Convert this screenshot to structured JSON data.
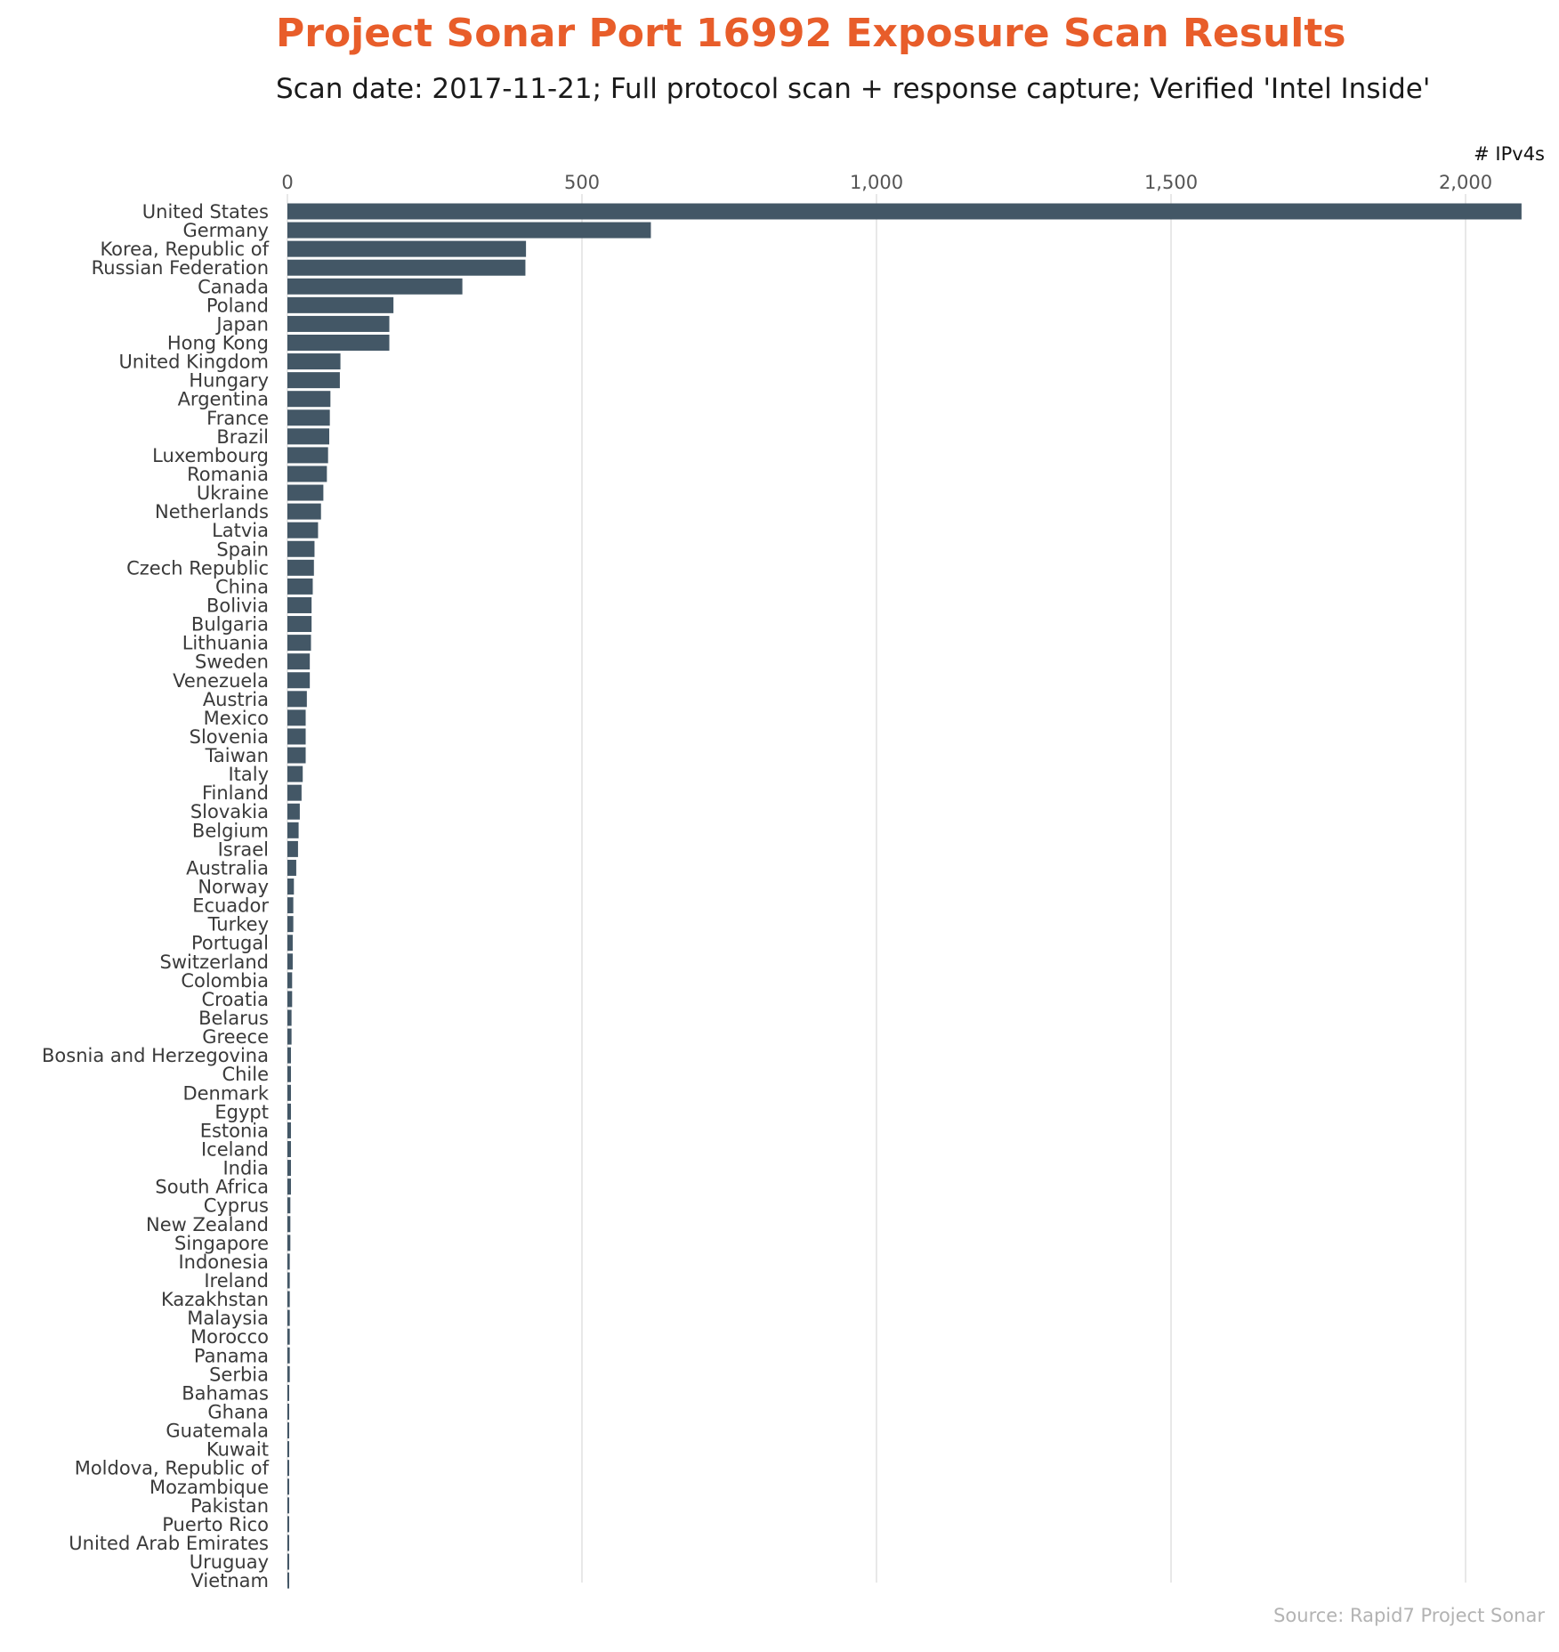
{
  "header": {
    "title": "Project Sonar Port 16992 Exposure Scan Results",
    "subtitle": "Scan date: 2017-11-21; Full protocol scan + response capture; Verified 'Intel Inside'"
  },
  "footer": {
    "source": "Source: Rapid7 Project Sonar"
  },
  "colors": {
    "title": "#E85D2A",
    "bar": "#435766",
    "grid": "#d9d9d9",
    "label": "#3a3a3a"
  },
  "chart_data": {
    "type": "bar",
    "orientation": "horizontal",
    "xlabel": "# IPv4s",
    "ylabel": "",
    "xlim": [
      0,
      2100
    ],
    "xticks": [
      0,
      500,
      1000,
      1500,
      2000
    ],
    "xtick_labels": [
      "0",
      "500",
      "1,000",
      "1,500",
      "2,000"
    ],
    "axis_position": "top",
    "grid": "vertical",
    "categories": [
      "United States",
      "Germany",
      "Korea, Republic of",
      "Russian Federation",
      "Canada",
      "Poland",
      "Japan",
      "Hong Kong",
      "United Kingdom",
      "Hungary",
      "Argentina",
      "France",
      "Brazil",
      "Luxembourg",
      "Romania",
      "Ukraine",
      "Netherlands",
      "Latvia",
      "Spain",
      "Czech Republic",
      "China",
      "Bolivia",
      "Bulgaria",
      "Lithuania",
      "Sweden",
      "Venezuela",
      "Austria",
      "Mexico",
      "Slovenia",
      "Taiwan",
      "Italy",
      "Finland",
      "Slovakia",
      "Belgium",
      "Israel",
      "Australia",
      "Norway",
      "Ecuador",
      "Turkey",
      "Portugal",
      "Switzerland",
      "Colombia",
      "Croatia",
      "Belarus",
      "Greece",
      "Bosnia and Herzegovina",
      "Chile",
      "Denmark",
      "Egypt",
      "Estonia",
      "Iceland",
      "India",
      "South Africa",
      "Cyprus",
      "New Zealand",
      "Singapore",
      "Indonesia",
      "Ireland",
      "Kazakhstan",
      "Malaysia",
      "Morocco",
      "Panama",
      "Serbia",
      "Bahamas",
      "Ghana",
      "Guatemala",
      "Kuwait",
      "Moldova, Republic of",
      "Mozambique",
      "Pakistan",
      "Puerto Rico",
      "United Arab Emirates",
      "Uruguay",
      "Vietnam"
    ],
    "values": [
      2095,
      617,
      405,
      404,
      297,
      180,
      173,
      173,
      90,
      89,
      73,
      72,
      71,
      69,
      67,
      61,
      57,
      52,
      46,
      45,
      43,
      41,
      41,
      40,
      38,
      38,
      33,
      31,
      31,
      31,
      26,
      24,
      21,
      19,
      18,
      15,
      11,
      10,
      10,
      9,
      9,
      8,
      8,
      7,
      7,
      6,
      6,
      6,
      6,
      6,
      6,
      6,
      6,
      5,
      5,
      5,
      4,
      4,
      4,
      4,
      4,
      4,
      4,
      3,
      3,
      3,
      3,
      3,
      3,
      3,
      3,
      3,
      3,
      3
    ]
  }
}
